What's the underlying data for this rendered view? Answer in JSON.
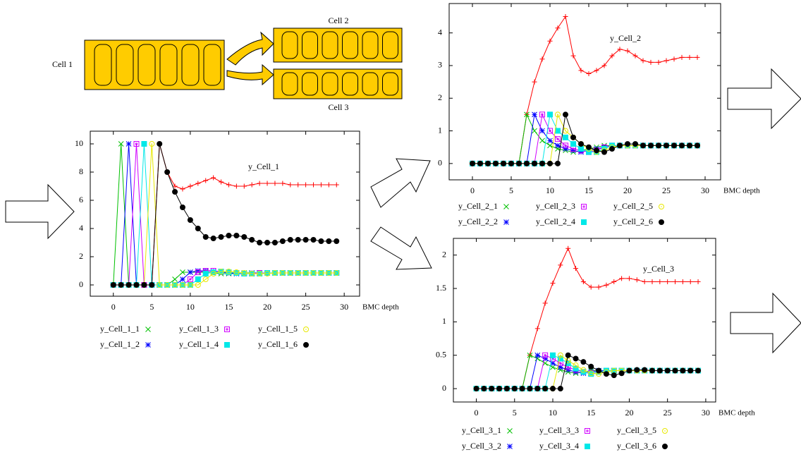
{
  "diagram": {
    "cells": [
      "Cell 1",
      "Cell 2",
      "Cell 3"
    ]
  },
  "chart_data": [
    {
      "type": "line",
      "xlabel": "BMC depth",
      "xlim": [
        -3,
        32
      ],
      "ylim": [
        -0.8,
        10.9
      ],
      "xticks": [
        0,
        5,
        10,
        15,
        20,
        25,
        30
      ],
      "yticks": [
        0,
        2,
        4,
        6,
        8,
        10
      ],
      "x": [
        0,
        1,
        2,
        3,
        4,
        5,
        6,
        7,
        8,
        9,
        10,
        11,
        12,
        13,
        14,
        15,
        16,
        17,
        18,
        19,
        20,
        21,
        22,
        23,
        24,
        25,
        26,
        27,
        28,
        29
      ],
      "series": [
        {
          "name": "y_Cell_1",
          "color": "#ff0000",
          "marker": "plus",
          "values": [
            0,
            0,
            0,
            0,
            0,
            0,
            10,
            8,
            7,
            6.8,
            7,
            7.2,
            7.4,
            7.6,
            7.3,
            7.1,
            7,
            7,
            7.1,
            7.2,
            7.2,
            7.2,
            7.2,
            7.1,
            7.1,
            7.1,
            7.1,
            7.1,
            7.1,
            7.1
          ]
        },
        {
          "name": "y_Cell_1_1",
          "color": "#00c000",
          "marker": "cross",
          "values": [
            0,
            10,
            0,
            0,
            0,
            0,
            0,
            0,
            0.4,
            0.9,
            0.9,
            0.9,
            0.9,
            0.85,
            0.8,
            0.8,
            0.8,
            0.85,
            0.85,
            0.85,
            0.85,
            0.85,
            0.85,
            0.85,
            0.85,
            0.85,
            0.85,
            0.85,
            0.85,
            0.85
          ]
        },
        {
          "name": "y_Cell_1_2",
          "color": "#0000ff",
          "marker": "star",
          "values": [
            0,
            0,
            10,
            0,
            0,
            0,
            0,
            0,
            0,
            0.4,
            0.9,
            1,
            1,
            0.95,
            0.9,
            0.85,
            0.8,
            0.8,
            0.85,
            0.85,
            0.85,
            0.85,
            0.85,
            0.85,
            0.85,
            0.85,
            0.85,
            0.85,
            0.85,
            0.85
          ]
        },
        {
          "name": "y_Cell_1_3",
          "color": "#d000ff",
          "marker": "boxopen",
          "values": [
            0,
            0,
            0,
            10,
            0,
            0,
            0,
            0,
            0,
            0,
            0.4,
            0.9,
            1,
            1,
            0.95,
            0.9,
            0.85,
            0.8,
            0.8,
            0.85,
            0.85,
            0.85,
            0.85,
            0.85,
            0.85,
            0.85,
            0.85,
            0.85,
            0.85,
            0.85
          ]
        },
        {
          "name": "y_Cell_1_4",
          "color": "#00e8e8",
          "marker": "boxfilled",
          "values": [
            0,
            0,
            0,
            0,
            10,
            0,
            0,
            0,
            0,
            0,
            0,
            0.4,
            0.8,
            0.9,
            0.95,
            0.9,
            0.85,
            0.8,
            0.8,
            0.8,
            0.85,
            0.85,
            0.85,
            0.85,
            0.85,
            0.85,
            0.85,
            0.85,
            0.85,
            0.85
          ]
        },
        {
          "name": "y_Cell_1_5",
          "color": "#e8e800",
          "marker": "circleopen",
          "values": [
            0,
            0,
            0,
            0,
            0,
            10,
            0,
            0,
            0,
            0,
            0,
            0,
            0.4,
            0.8,
            0.95,
            0.95,
            0.9,
            0.85,
            0.8,
            0.8,
            0.8,
            0.85,
            0.85,
            0.85,
            0.85,
            0.85,
            0.85,
            0.85,
            0.85,
            0.85
          ]
        },
        {
          "name": "y_Cell_1_6",
          "color": "#000000",
          "marker": "circlefilled",
          "values": [
            0,
            0,
            0,
            0,
            0,
            0,
            10,
            8,
            6.6,
            5.5,
            4.6,
            4,
            3.4,
            3.3,
            3.4,
            3.5,
            3.5,
            3.4,
            3.2,
            3,
            3,
            3,
            3.1,
            3.2,
            3.2,
            3.2,
            3.2,
            3.1,
            3.1,
            3.1
          ]
        }
      ]
    },
    {
      "type": "line",
      "xlabel": "BMC depth",
      "xlim": [
        -3,
        32
      ],
      "ylim": [
        -0.5,
        4.9
      ],
      "xticks": [
        0,
        5,
        10,
        15,
        20,
        25,
        30
      ],
      "yticks": [
        0,
        1,
        2,
        3,
        4
      ],
      "x": [
        0,
        1,
        2,
        3,
        4,
        5,
        6,
        7,
        8,
        9,
        10,
        11,
        12,
        13,
        14,
        15,
        16,
        17,
        18,
        19,
        20,
        21,
        22,
        23,
        24,
        25,
        26,
        27,
        28,
        29
      ],
      "series": [
        {
          "name": "y_Cell_2",
          "color": "#ff0000",
          "marker": "plus",
          "values": [
            0,
            0,
            0,
            0,
            0,
            0,
            0,
            1.5,
            2.5,
            3.2,
            3.75,
            4.15,
            4.5,
            3.3,
            2.85,
            2.75,
            2.85,
            3.0,
            3.3,
            3.5,
            3.45,
            3.3,
            3.15,
            3.1,
            3.1,
            3.15,
            3.2,
            3.25,
            3.25,
            3.25
          ]
        },
        {
          "name": "y_Cell_2_1",
          "color": "#00c000",
          "marker": "cross",
          "values": [
            0,
            0,
            0,
            0,
            0,
            0,
            0,
            1.5,
            1.0,
            0.7,
            0.55,
            0.45,
            0.4,
            0.35,
            0.4,
            0.45,
            0.5,
            0.55,
            0.55,
            0.55,
            0.55,
            0.55,
            0.55,
            0.55,
            0.55,
            0.55,
            0.55,
            0.55,
            0.55,
            0.55
          ]
        },
        {
          "name": "y_Cell_2_2",
          "color": "#0000ff",
          "marker": "star",
          "values": [
            0,
            0,
            0,
            0,
            0,
            0,
            0,
            0,
            1.5,
            1.0,
            0.7,
            0.55,
            0.45,
            0.4,
            0.35,
            0.4,
            0.45,
            0.5,
            0.55,
            0.55,
            0.55,
            0.55,
            0.55,
            0.55,
            0.55,
            0.55,
            0.55,
            0.55,
            0.55,
            0.55
          ]
        },
        {
          "name": "y_Cell_2_3",
          "color": "#d000ff",
          "marker": "boxopen",
          "values": [
            0,
            0,
            0,
            0,
            0,
            0,
            0,
            0,
            0,
            1.5,
            1.0,
            0.75,
            0.55,
            0.45,
            0.4,
            0.35,
            0.4,
            0.5,
            0.55,
            0.55,
            0.55,
            0.55,
            0.55,
            0.55,
            0.55,
            0.55,
            0.55,
            0.55,
            0.55,
            0.55
          ]
        },
        {
          "name": "y_Cell_2_4",
          "color": "#00e8e8",
          "marker": "boxfilled",
          "values": [
            0,
            0,
            0,
            0,
            0,
            0,
            0,
            0,
            0,
            0,
            1.5,
            1.0,
            0.8,
            0.6,
            0.45,
            0.35,
            0.35,
            0.45,
            0.55,
            0.55,
            0.55,
            0.55,
            0.55,
            0.55,
            0.55,
            0.55,
            0.55,
            0.55,
            0.55,
            0.55
          ]
        },
        {
          "name": "y_Cell_2_5",
          "color": "#e8e800",
          "marker": "circleopen",
          "values": [
            0,
            0,
            0,
            0,
            0,
            0,
            0,
            0,
            0,
            0,
            0,
            1.5,
            1.0,
            0.8,
            0.6,
            0.45,
            0.35,
            0.4,
            0.5,
            0.55,
            0.55,
            0.55,
            0.55,
            0.55,
            0.55,
            0.55,
            0.55,
            0.55,
            0.55,
            0.55
          ]
        },
        {
          "name": "y_Cell_2_6",
          "color": "#000000",
          "marker": "circlefilled",
          "values": [
            0,
            0,
            0,
            0,
            0,
            0,
            0,
            0,
            0,
            0,
            0,
            0,
            1.5,
            0.8,
            0.6,
            0.5,
            0.4,
            0.35,
            0.45,
            0.55,
            0.6,
            0.6,
            0.55,
            0.55,
            0.55,
            0.55,
            0.55,
            0.55,
            0.55,
            0.55
          ]
        }
      ]
    },
    {
      "type": "line",
      "xlabel": "BMC depth",
      "xlim": [
        -3,
        31.3
      ],
      "ylim": [
        -0.2,
        2.25
      ],
      "xticks": [
        0,
        5,
        10,
        15,
        20,
        25,
        30
      ],
      "yticks": [
        0,
        0.5,
        1,
        1.5,
        2
      ],
      "x": [
        0,
        1,
        2,
        3,
        4,
        5,
        6,
        7,
        8,
        9,
        10,
        11,
        12,
        13,
        14,
        15,
        16,
        17,
        18,
        19,
        20,
        21,
        22,
        23,
        24,
        25,
        26,
        27,
        28,
        29
      ],
      "series": [
        {
          "name": "y_Cell_3",
          "color": "#ff0000",
          "marker": "plus",
          "values": [
            0,
            0,
            0,
            0,
            0,
            0,
            0,
            0.5,
            0.9,
            1.28,
            1.58,
            1.85,
            2.1,
            1.8,
            1.6,
            1.52,
            1.52,
            1.55,
            1.6,
            1.65,
            1.65,
            1.63,
            1.6,
            1.6,
            1.6,
            1.6,
            1.6,
            1.6,
            1.6,
            1.6
          ]
        },
        {
          "name": "y_Cell_3_1",
          "color": "#00c000",
          "marker": "cross",
          "values": [
            0,
            0,
            0,
            0,
            0,
            0,
            0,
            0.5,
            0.45,
            0.38,
            0.32,
            0.28,
            0.25,
            0.23,
            0.25,
            0.27,
            0.27,
            0.27,
            0.27,
            0.27,
            0.27,
            0.27,
            0.27,
            0.27,
            0.27,
            0.27,
            0.27,
            0.27,
            0.27,
            0.27
          ]
        },
        {
          "name": "y_Cell_3_2",
          "color": "#0000ff",
          "marker": "star",
          "values": [
            0,
            0,
            0,
            0,
            0,
            0,
            0,
            0,
            0.5,
            0.45,
            0.38,
            0.32,
            0.28,
            0.25,
            0.23,
            0.25,
            0.27,
            0.27,
            0.27,
            0.27,
            0.27,
            0.27,
            0.27,
            0.27,
            0.27,
            0.27,
            0.27,
            0.27,
            0.27,
            0.27
          ]
        },
        {
          "name": "y_Cell_3_3",
          "color": "#d000ff",
          "marker": "boxopen",
          "values": [
            0,
            0,
            0,
            0,
            0,
            0,
            0,
            0,
            0,
            0.5,
            0.45,
            0.38,
            0.32,
            0.28,
            0.25,
            0.23,
            0.25,
            0.27,
            0.27,
            0.27,
            0.27,
            0.27,
            0.27,
            0.27,
            0.27,
            0.27,
            0.27,
            0.27,
            0.27,
            0.27
          ]
        },
        {
          "name": "y_Cell_3_4",
          "color": "#00e8e8",
          "marker": "boxfilled",
          "values": [
            0,
            0,
            0,
            0,
            0,
            0,
            0,
            0,
            0,
            0,
            0.5,
            0.45,
            0.38,
            0.3,
            0.25,
            0.22,
            0.25,
            0.27,
            0.27,
            0.27,
            0.27,
            0.27,
            0.27,
            0.27,
            0.27,
            0.27,
            0.27,
            0.27,
            0.27,
            0.27
          ]
        },
        {
          "name": "y_Cell_3_5",
          "color": "#e8e800",
          "marker": "circleopen",
          "values": [
            0,
            0,
            0,
            0,
            0,
            0,
            0,
            0,
            0,
            0,
            0,
            0.5,
            0.42,
            0.35,
            0.28,
            0.23,
            0.22,
            0.25,
            0.27,
            0.27,
            0.27,
            0.27,
            0.27,
            0.27,
            0.27,
            0.27,
            0.27,
            0.27,
            0.27,
            0.27
          ]
        },
        {
          "name": "y_Cell_3_6",
          "color": "#000000",
          "marker": "circlefilled",
          "values": [
            0,
            0,
            0,
            0,
            0,
            0,
            0,
            0,
            0,
            0,
            0,
            0,
            0.5,
            0.45,
            0.4,
            0.33,
            0.27,
            0.22,
            0.2,
            0.23,
            0.27,
            0.28,
            0.28,
            0.27,
            0.27,
            0.27,
            0.27,
            0.27,
            0.27,
            0.27
          ]
        }
      ]
    }
  ]
}
